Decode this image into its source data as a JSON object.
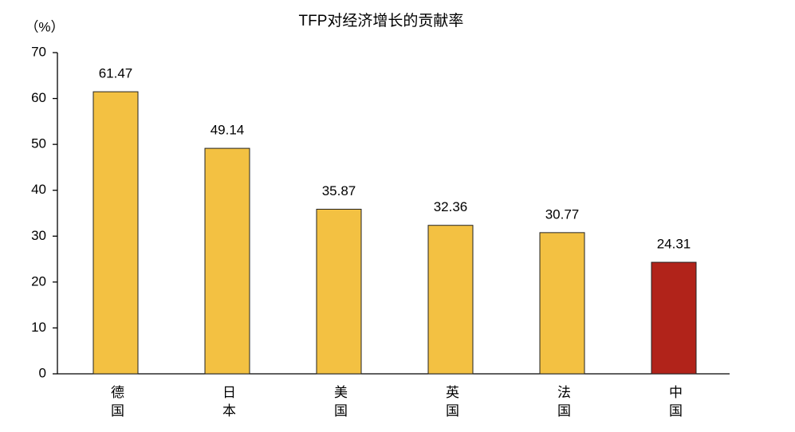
{
  "chart_data": {
    "type": "bar",
    "title": "TFP对经济增长的贡献率",
    "y_label": "（%）",
    "categories": [
      "德国",
      "日本",
      "美国",
      "英国",
      "法国",
      "中国"
    ],
    "values": [
      61.47,
      49.14,
      35.87,
      32.36,
      30.77,
      24.31
    ],
    "colors": [
      "#f3c142",
      "#f3c142",
      "#f3c142",
      "#f3c142",
      "#f3c142",
      "#b1231a"
    ],
    "ylim": [
      0,
      70
    ],
    "yticks": [
      0,
      10,
      20,
      30,
      40,
      50,
      60,
      70
    ],
    "grid": false
  }
}
